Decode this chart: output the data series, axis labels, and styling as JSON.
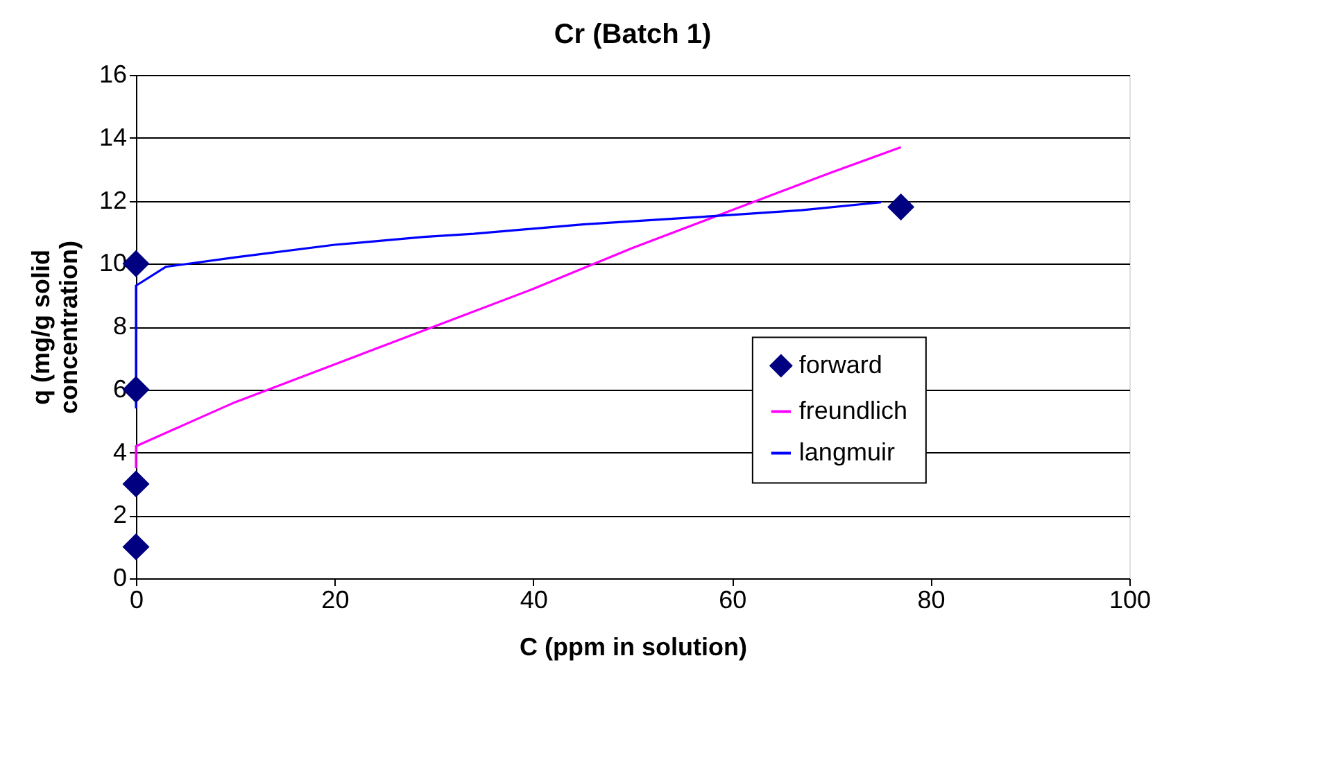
{
  "chart_data": {
    "type": "scatter",
    "title": "Cr (Batch 1)",
    "xlabel": "C (ppm in solution)",
    "ylabel": "q (mg/g solid concentration)",
    "xlim": [
      0,
      100
    ],
    "xticks": [
      0,
      20,
      40,
      60,
      80,
      100
    ],
    "ylim": [
      0,
      16
    ],
    "yticks": [
      0,
      2,
      4,
      6,
      8,
      10,
      12,
      14,
      16
    ],
    "grid": "y",
    "legend": "right",
    "series": [
      {
        "name": "forward",
        "marker": "diamond",
        "color": "#000080",
        "x": [
          0,
          0,
          0,
          0,
          77
        ],
        "values": [
          1,
          3,
          6,
          10,
          11.8
        ]
      },
      {
        "name": "freundlich",
        "type": "line",
        "marker": "none",
        "color": "#ff00ff",
        "x": [
          0,
          0,
          5,
          10,
          20,
          30,
          40,
          50,
          60,
          70,
          77
        ],
        "values": [
          3.5,
          4.2,
          4.9,
          5.6,
          6.8,
          8.0,
          9.2,
          10.5,
          11.7,
          12.9,
          13.7
        ]
      },
      {
        "name": "langmuir",
        "type": "line",
        "marker": "none",
        "color": "#0000ff",
        "x": [
          0,
          0,
          3,
          10,
          20,
          29,
          34,
          45,
          60,
          67,
          75
        ],
        "values": [
          5.4,
          9.3,
          9.9,
          10.2,
          10.6,
          10.85,
          10.95,
          11.25,
          11.55,
          11.7,
          11.95
        ]
      }
    ]
  }
}
